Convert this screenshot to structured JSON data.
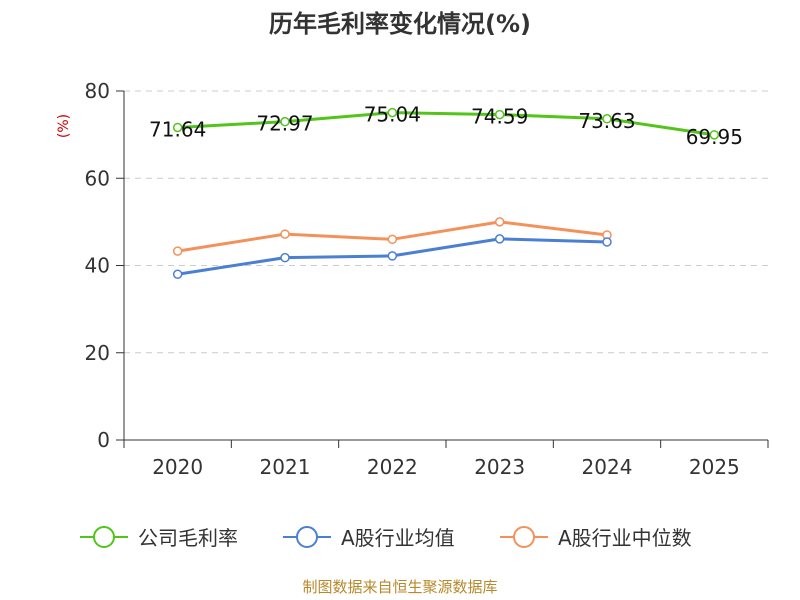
{
  "chart_data": {
    "type": "line",
    "title": "历年毛利率变化情况(%)",
    "ylabel": "(%)",
    "xlabel": "",
    "ylim": [
      0,
      80
    ],
    "yticks": [
      0,
      20,
      40,
      60,
      80
    ],
    "categories": [
      "2020",
      "2021",
      "2022",
      "2023",
      "2024",
      "2025"
    ],
    "series": [
      {
        "name": "公司毛利率",
        "color": "#52c41a",
        "values": [
          71.64,
          72.97,
          75.04,
          74.59,
          73.63,
          69.95
        ],
        "labels": [
          "71.64",
          "72.97",
          "75.04",
          "74.59",
          "73.63",
          "69.95"
        ]
      },
      {
        "name": "A股行业均值",
        "color": "#4a7fd4",
        "values": [
          38.0,
          41.8,
          42.2,
          46.1,
          45.4,
          null
        ]
      },
      {
        "name": "A股行业中位数",
        "color": "#f4915a",
        "values": [
          43.3,
          47.2,
          46.0,
          50.0,
          47.0,
          null
        ]
      }
    ],
    "grid": true,
    "legend_position": "bottom"
  },
  "source": "制图数据来自恒生聚源数据库"
}
